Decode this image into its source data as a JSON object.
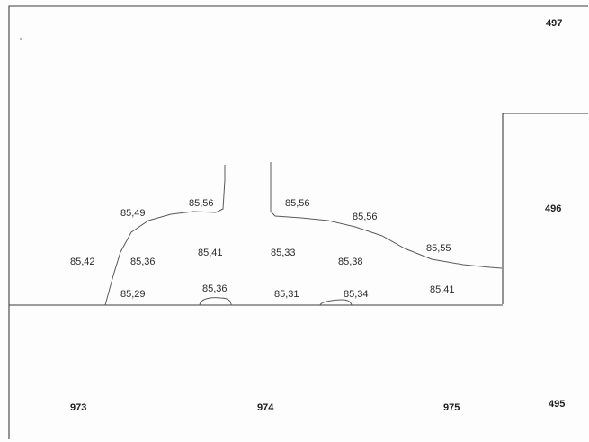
{
  "parcels": [
    {
      "id": "parcel-497",
      "number": "497"
    },
    {
      "id": "parcel-496",
      "number": "496"
    },
    {
      "id": "parcel-495",
      "number": "495"
    },
    {
      "id": "parcel-973",
      "number": "973"
    },
    {
      "id": "parcel-974",
      "number": "974"
    },
    {
      "id": "parcel-975",
      "number": "975"
    }
  ],
  "elevations": [
    {
      "id": "elevation-85-49",
      "value": "85,49"
    },
    {
      "id": "elevation-85-56-left",
      "value": "85,56"
    },
    {
      "id": "elevation-85-56-center",
      "value": "85,56"
    },
    {
      "id": "elevation-85-56-right",
      "value": "85,56"
    },
    {
      "id": "elevation-85-55",
      "value": "85,55"
    },
    {
      "id": "elevation-85-42",
      "value": "85,42"
    },
    {
      "id": "elevation-85-36-left",
      "value": "85,36"
    },
    {
      "id": "elevation-85-41-center",
      "value": "85,41"
    },
    {
      "id": "elevation-85-33",
      "value": "85,33"
    },
    {
      "id": "elevation-85-38",
      "value": "85,38"
    },
    {
      "id": "elevation-85-29",
      "value": "85,29"
    },
    {
      "id": "elevation-85-36-bottom",
      "value": "85,36"
    },
    {
      "id": "elevation-85-31",
      "value": "85,31"
    },
    {
      "id": "elevation-85-34",
      "value": "85,34"
    },
    {
      "id": "elevation-85-41-right",
      "value": "85,41"
    }
  ],
  "colors": {
    "background": "#fdfdfd",
    "linework": "#3d3d3d",
    "text": "#2b2b2b"
  }
}
